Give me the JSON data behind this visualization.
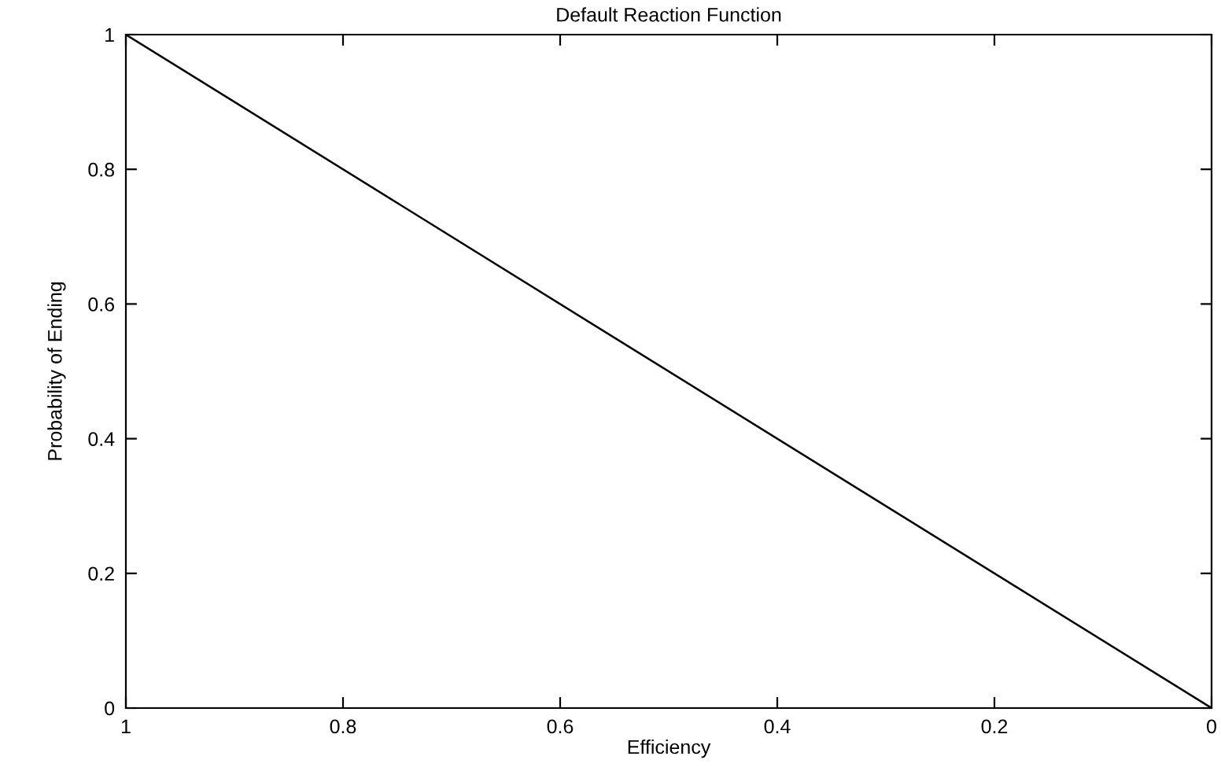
{
  "chart_data": {
    "type": "line",
    "title": "Default Reaction Function",
    "xlabel": "Efficiency",
    "ylabel": "Probability of Ending",
    "x": [
      1,
      0
    ],
    "series": [
      {
        "color": "#000000",
        "values": [
          1,
          0
        ]
      }
    ],
    "xlim": [
      1,
      0
    ],
    "ylim": [
      0,
      1
    ],
    "xticks": [
      1,
      0.8,
      0.6,
      0.4,
      0.2,
      0
    ],
    "yticks": [
      0,
      0.2,
      0.4,
      0.6,
      0.8,
      1
    ],
    "grid": false,
    "legend": false,
    "marker": "none",
    "line_style": "solid"
  }
}
